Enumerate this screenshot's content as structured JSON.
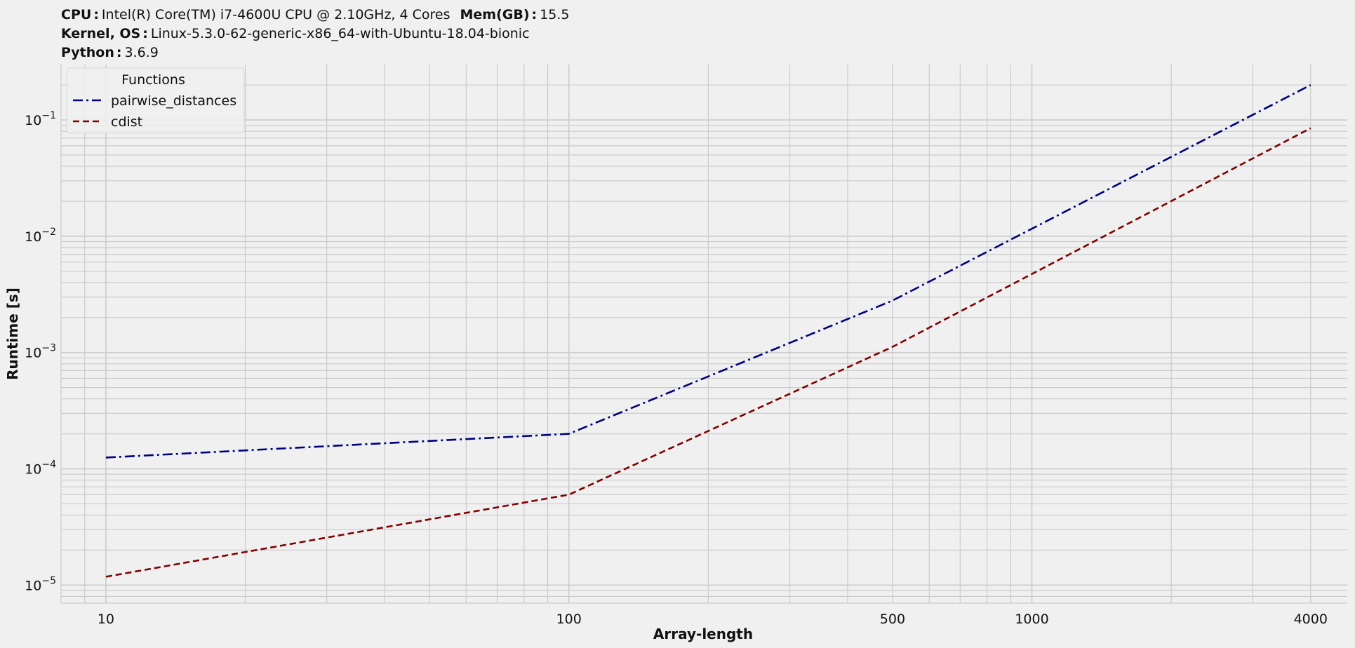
{
  "header": {
    "cpu_key": "CPU",
    "cpu_val": "Intel(R) Core(TM) i7-4600U CPU @ 2.10GHz, 4 Cores",
    "mem_key": "Mem(GB)",
    "mem_val": "15.5",
    "kernel_key": "Kernel, OS",
    "kernel_val": "Linux-5.3.0-62-generic-x86_64-with-Ubuntu-18.04-bionic",
    "python_key": "Python",
    "python_val": "3.6.9",
    "separator": ":"
  },
  "chart_data": {
    "type": "line",
    "title": "",
    "xlabel": "Array-length",
    "ylabel": "Runtime [s]",
    "xscale": "log",
    "yscale": "log",
    "xlim": [
      8,
      4800
    ],
    "ylim": [
      7e-06,
      0.3
    ],
    "x": [
      10,
      100,
      500,
      4000
    ],
    "x_tick_labels": [
      "10",
      "100",
      "500",
      "1000",
      "4000"
    ],
    "x_tick_values": [
      10,
      100,
      500,
      1000,
      4000
    ],
    "y_tick_labels": [
      {
        "base": "10",
        "exp": "−5",
        "value": 1e-05
      },
      {
        "base": "10",
        "exp": "−4",
        "value": 0.0001
      },
      {
        "base": "10",
        "exp": "−3",
        "value": 0.001
      },
      {
        "base": "10",
        "exp": "−2",
        "value": 0.01
      },
      {
        "base": "10",
        "exp": "−1",
        "value": 0.1
      }
    ],
    "grid": true,
    "legend": {
      "title": "Functions",
      "position": "top-left"
    },
    "series": [
      {
        "name": "pairwise_distances",
        "values": [
          0.000125,
          0.0002,
          0.0028,
          0.2
        ],
        "color": "#000080",
        "style": "dashdot"
      },
      {
        "name": "cdist",
        "values": [
          1.18e-05,
          6e-05,
          0.00112,
          0.085
        ],
        "color": "#800000",
        "style": "dashed"
      }
    ]
  }
}
